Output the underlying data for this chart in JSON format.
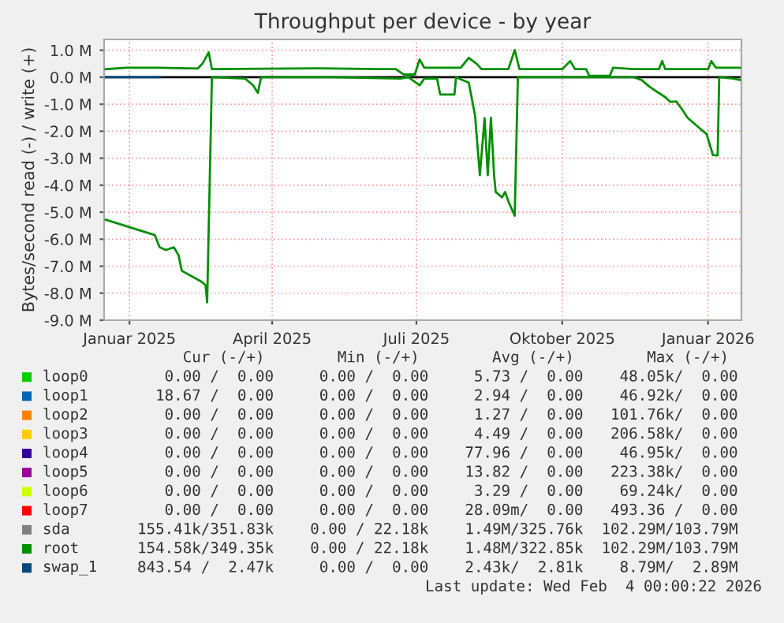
{
  "chart_data": {
    "type": "line",
    "title": "Throughput per device - by year",
    "ylabel": "Bytes/second read (-) / write (+)",
    "xlim": [
      "2024-12-16",
      "2026-01-22"
    ],
    "xticks": [
      {
        "value": "2025-01-01",
        "label": "Januar 2025"
      },
      {
        "value": "2025-04-01",
        "label": "April 2025"
      },
      {
        "value": "2025-07-01",
        "label": "Juli 2025"
      },
      {
        "value": "2025-10-01",
        "label": "Oktober 2025"
      },
      {
        "value": "2026-01-01",
        "label": "Januar 2026"
      }
    ],
    "ylim": [
      -9.0,
      1.4
    ],
    "yticks": [
      {
        "value": 1,
        "label": "1.0 M"
      },
      {
        "value": 0,
        "label": "0.0 M"
      },
      {
        "value": -1,
        "label": "-1.0 M"
      },
      {
        "value": -2,
        "label": "-2.0 M"
      },
      {
        "value": -3,
        "label": "-3.0 M"
      },
      {
        "value": -4,
        "label": "-4.0 M"
      },
      {
        "value": -5,
        "label": "-5.0 M"
      },
      {
        "value": -6,
        "label": "-6.0 M"
      },
      {
        "value": -7,
        "label": "-7.0 M"
      },
      {
        "value": -8,
        "label": "-8.0 M"
      },
      {
        "value": -9,
        "label": "-9.0 M"
      }
    ],
    "grid": true,
    "legend": "bottom",
    "line_style": "solid",
    "ref_lines": [
      {
        "axis": "y",
        "value": 0,
        "color": "#000000"
      }
    ],
    "series": [
      {
        "name": "loop0",
        "color": "#00cc00"
      },
      {
        "name": "loop1",
        "color": "#0066b3"
      },
      {
        "name": "loop2",
        "color": "#ff8000"
      },
      {
        "name": "loop3",
        "color": "#ffcc00"
      },
      {
        "name": "loop4",
        "color": "#330099"
      },
      {
        "name": "loop5",
        "color": "#990099"
      },
      {
        "name": "loop6",
        "color": "#ccff00"
      },
      {
        "name": "loop7",
        "color": "#ff0000"
      },
      {
        "name": "sda",
        "color": "#808080"
      },
      {
        "name": "root",
        "color": "#008f00",
        "x": [
          "2024-12-17",
          "2025-01-17",
          "2025-01-20",
          "2025-01-24",
          "2025-01-29",
          "2025-02-01",
          "2025-02-03",
          "2025-02-15",
          "2025-02-18",
          "2025-02-19",
          "2025-02-22",
          "2025-03-15",
          "2025-03-20",
          "2025-03-23",
          "2025-03-25",
          "2025-05-09",
          "2025-06-21",
          "2025-06-26",
          "2025-07-03",
          "2025-07-06",
          "2025-07-14",
          "2025-07-16",
          "2025-07-25",
          "2025-07-26",
          "2025-08-03",
          "2025-08-07",
          "2025-08-10",
          "2025-08-13",
          "2025-08-15",
          "2025-08-17",
          "2025-08-19",
          "2025-08-20",
          "2025-08-24",
          "2025-08-26",
          "2025-08-28",
          "2025-09-01",
          "2025-09-03",
          "2025-11-15",
          "2025-11-20",
          "2025-11-25",
          "2025-11-30",
          "2025-12-05",
          "2025-12-08",
          "2025-12-12",
          "2025-12-16",
          "2025-12-19",
          "2025-12-27",
          "2025-12-31",
          "2026-01-04",
          "2026-01-07",
          "2026-01-08",
          "2026-01-17",
          "2026-01-21"
        ],
        "values": [
          -5.28,
          -5.85,
          -6.3,
          -6.4,
          -6.3,
          -6.6,
          -7.17,
          -7.56,
          -7.7,
          -8.34,
          0.0,
          -0.05,
          -0.3,
          -0.58,
          0.0,
          0.0,
          -0.05,
          0.0,
          -0.3,
          -0.05,
          -0.05,
          -0.64,
          -0.64,
          0.0,
          -0.2,
          -1.42,
          -3.63,
          -1.52,
          -3.63,
          -1.5,
          -3.63,
          -4.25,
          -4.45,
          -4.25,
          -4.6,
          -5.13,
          0.0,
          0.0,
          -0.1,
          -0.35,
          -0.55,
          -0.74,
          -0.91,
          -0.9,
          -1.23,
          -1.5,
          -1.91,
          -2.1,
          -2.88,
          -2.9,
          0.0,
          -0.05,
          -0.1
        ]
      },
      {
        "name": "swap_1",
        "color": "#00487d",
        "x": [
          "2024-12-17",
          "2025-01-20"
        ],
        "values": [
          0.0,
          0.0
        ]
      },
      {
        "color": "#008f00",
        "x": [
          "2024-12-17",
          "2024-12-30",
          "2025-01-19",
          "2025-02-13",
          "2025-02-16",
          "2025-02-20",
          "2025-02-22",
          "2025-04-30",
          "2025-06-08",
          "2025-06-18",
          "2025-06-23",
          "2025-06-30",
          "2025-07-03",
          "2025-07-06",
          "2025-07-29",
          "2025-08-03",
          "2025-08-08",
          "2025-08-11",
          "2025-08-28",
          "2025-09-01",
          "2025-09-04",
          "2025-10-01",
          "2025-10-06",
          "2025-10-09",
          "2025-10-16",
          "2025-10-18",
          "2025-10-31",
          "2025-11-02",
          "2025-11-15",
          "2025-12-01",
          "2025-12-03",
          "2025-12-05",
          "2026-01-01",
          "2026-01-03",
          "2026-01-06",
          "2026-01-21"
        ],
        "values": [
          0.3,
          0.35,
          0.35,
          0.32,
          0.5,
          0.92,
          0.3,
          0.33,
          0.3,
          0.3,
          0.1,
          0.1,
          0.66,
          0.35,
          0.35,
          0.72,
          0.5,
          0.3,
          0.3,
          1.01,
          0.3,
          0.3,
          0.6,
          0.3,
          0.3,
          0.05,
          0.05,
          0.35,
          0.3,
          0.3,
          0.6,
          0.3,
          0.3,
          0.6,
          0.35,
          0.35
        ]
      }
    ],
    "annotations": [
      "     Cur (-/+)        Min (-/+)        Avg (-/+)        Max (-/+)",
      "   0.00 /  0.00     0.00 /  0.00     5.73 /  0.00    48.05k/  0.00",
      "  18.67 /  0.00     0.00 /  0.00     2.94 /  0.00    46.92k/  0.00",
      "   0.00 /  0.00     0.00 /  0.00     1.27 /  0.00   101.76k/  0.00",
      "   0.00 /  0.00     0.00 /  0.00     4.49 /  0.00   206.58k/  0.00",
      "   0.00 /  0.00     0.00 /  0.00    77.96 /  0.00    46.95k/  0.00",
      "   0.00 /  0.00     0.00 /  0.00    13.82 /  0.00   223.38k/  0.00",
      "   0.00 /  0.00     0.00 /  0.00     3.29 /  0.00    69.24k/  0.00",
      "   0.00 /  0.00     0.00 /  0.00    28.09m/  0.00   493.36 /  0.00",
      "155.41k/351.83k    0.00 / 22.18k    1.49M/325.76k  102.29M/103.79M",
      "154.58k/349.35k    0.00 / 22.18k    1.48M/322.85k  102.29M/103.79M",
      "843.54 /  2.47k     0.00 /  0.00    2.43k/  2.81k    8.79M/  2.89M",
      "Last update: Wed Feb  4 00:00:22 2026"
    ]
  }
}
